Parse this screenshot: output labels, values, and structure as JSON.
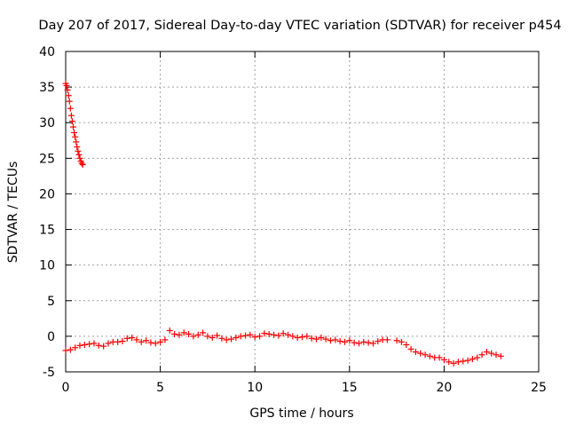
{
  "chart_data": {
    "type": "scatter",
    "title": "Day 207 of 2017, Sidereal Day-to-day VTEC variation (SDTVAR) for receiver p454",
    "xlabel": "GPS time / hours",
    "ylabel": "SDTVAR / TECUs",
    "xlim": [
      0,
      25
    ],
    "ylim": [
      -5,
      40
    ],
    "xticks": [
      0,
      5,
      10,
      15,
      20,
      25
    ],
    "yticks": [
      -5,
      0,
      5,
      10,
      15,
      20,
      25,
      30,
      35,
      40
    ],
    "grid": true,
    "marker": "plus",
    "color": "#ff0000",
    "series": [
      {
        "name": "p454",
        "x": [
          0.0,
          0.05,
          0.1,
          0.15,
          0.2,
          0.25,
          0.3,
          0.35,
          0.4,
          0.45,
          0.5,
          0.55,
          0.6,
          0.65,
          0.7,
          0.75,
          0.8,
          0.85,
          0.9
        ],
        "y": [
          35.5,
          35.2,
          34.6,
          33.8,
          33.0,
          32.0,
          31.0,
          30.2,
          29.4,
          28.6,
          28.0,
          27.3,
          26.6,
          26.0,
          25.5,
          25.0,
          24.6,
          24.3,
          24.1
        ]
      },
      {
        "name": "p454",
        "x": [
          0.0,
          0.25,
          0.5,
          0.75,
          1.0,
          1.25,
          1.5,
          1.75,
          2.0,
          2.25,
          2.5,
          2.75,
          3.0,
          3.25,
          3.5,
          3.75,
          4.0,
          4.25,
          4.5,
          4.75,
          5.0,
          5.25,
          5.5,
          5.75,
          6.0,
          6.25,
          6.5,
          6.75,
          7.0,
          7.25,
          7.5,
          7.75,
          8.0,
          8.25,
          8.5,
          8.75,
          9.0,
          9.25,
          9.5,
          9.75,
          10.0,
          10.25,
          10.5,
          10.75,
          11.0,
          11.25,
          11.5,
          11.75,
          12.0,
          12.25,
          12.5,
          12.75,
          13.0,
          13.25,
          13.5,
          13.75,
          14.0,
          14.25,
          14.5,
          14.75,
          15.0,
          15.25,
          15.5,
          15.75,
          16.0,
          16.25,
          16.5,
          16.75,
          17.0,
          17.5,
          17.75,
          18.0,
          18.25,
          18.5,
          18.75,
          19.0,
          19.25,
          19.5,
          19.75,
          20.0,
          20.25,
          20.5,
          20.75,
          21.0,
          21.25,
          21.5,
          21.75,
          22.0,
          22.25,
          22.5,
          22.75,
          23.0
        ],
        "y": [
          -2.0,
          -1.9,
          -1.6,
          -1.3,
          -1.2,
          -1.1,
          -1.0,
          -1.3,
          -1.4,
          -1.0,
          -0.8,
          -0.8,
          -0.7,
          -0.3,
          -0.2,
          -0.5,
          -0.8,
          -0.6,
          -0.9,
          -1.0,
          -0.8,
          -0.5,
          0.8,
          0.3,
          0.2,
          0.5,
          0.3,
          0.0,
          0.2,
          0.5,
          0.0,
          -0.2,
          0.1,
          -0.3,
          -0.5,
          -0.4,
          -0.2,
          0.0,
          0.1,
          0.2,
          -0.1,
          0.0,
          0.4,
          0.3,
          0.2,
          0.1,
          0.4,
          0.2,
          0.0,
          -0.2,
          -0.1,
          0.0,
          -0.3,
          -0.4,
          -0.2,
          -0.4,
          -0.6,
          -0.5,
          -0.7,
          -0.8,
          -0.6,
          -0.9,
          -1.0,
          -0.8,
          -0.9,
          -1.0,
          -0.7,
          -0.5,
          -0.5,
          -0.6,
          -0.8,
          -1.2,
          -1.8,
          -2.2,
          -2.4,
          -2.6,
          -2.8,
          -3.0,
          -3.0,
          -3.3,
          -3.6,
          -3.8,
          -3.6,
          -3.5,
          -3.4,
          -3.2,
          -3.0,
          -2.6,
          -2.2,
          -2.4,
          -2.6,
          -2.8
        ]
      }
    ]
  }
}
